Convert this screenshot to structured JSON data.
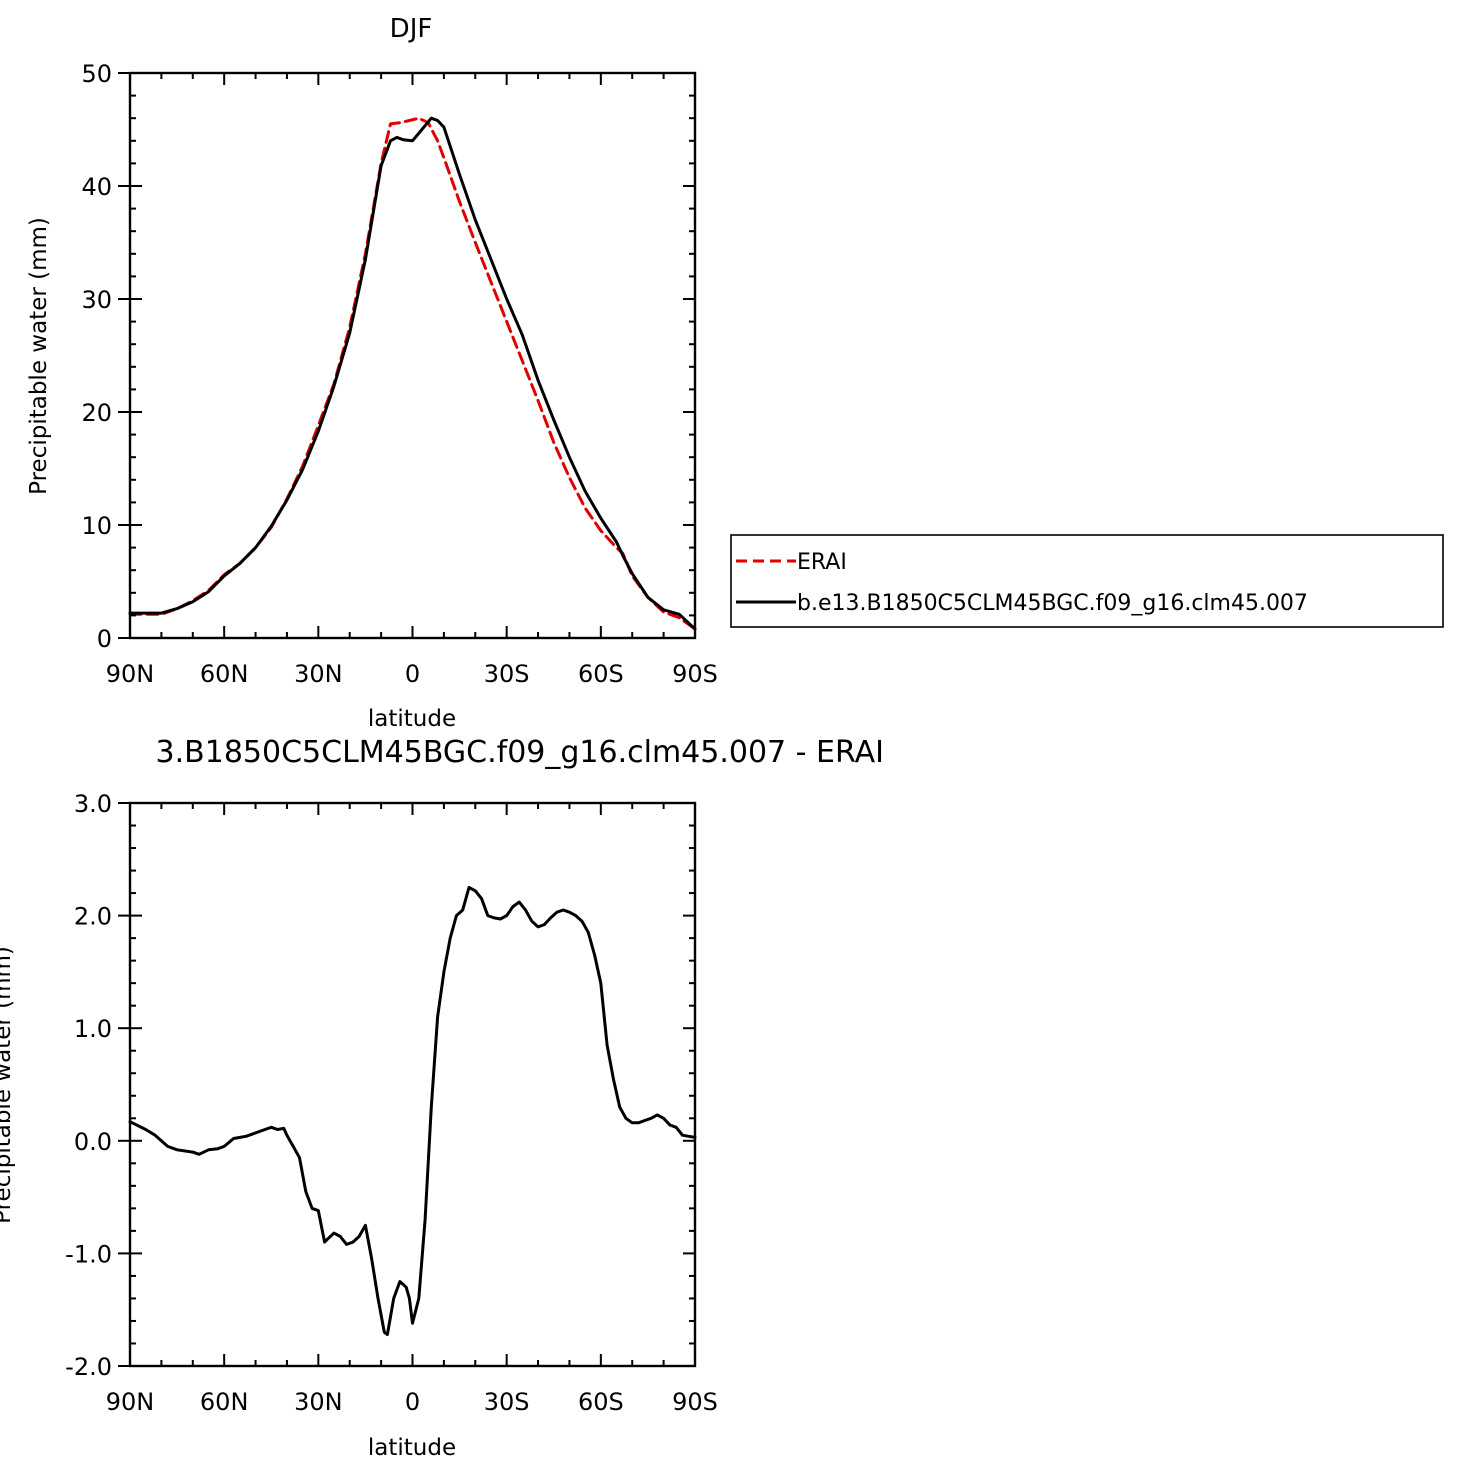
{
  "chart_data": [
    {
      "type": "line",
      "title": "DJF",
      "xlabel": "latitude",
      "ylabel": "Precipitable water (mm)",
      "xlim": [
        90,
        -90
      ],
      "ylim": [
        0,
        50
      ],
      "x_ticks": [
        90,
        60,
        30,
        0,
        -30,
        -60,
        -90
      ],
      "x_tick_labels": [
        "90N",
        "60N",
        "30N",
        "0",
        "30S",
        "60S",
        "90S"
      ],
      "y_ticks": [
        0,
        10,
        20,
        30,
        40,
        50
      ],
      "y_tick_labels": [
        "0",
        "10",
        "20",
        "30",
        "40",
        "50"
      ],
      "legend_position": "right",
      "series": [
        {
          "name": "ERAI",
          "color": "#e00000",
          "dash": "dashed",
          "x": [
            90,
            85,
            80,
            75,
            70,
            65,
            60,
            55,
            50,
            45,
            40,
            35,
            30,
            25,
            20,
            15,
            10,
            7,
            4,
            1,
            -2,
            -5,
            -8,
            -10,
            -15,
            -20,
            -25,
            -30,
            -35,
            -40,
            -45,
            -50,
            -55,
            -60,
            -65,
            -67,
            -70,
            -75,
            -80,
            -85,
            -90
          ],
          "y": [
            2.1,
            2.1,
            2.1,
            2.6,
            3.3,
            4.2,
            5.6,
            6.6,
            8.0,
            9.8,
            12.3,
            15.2,
            18.8,
            22.5,
            27.5,
            34.0,
            42.0,
            45.5,
            45.6,
            45.8,
            46.0,
            45.6,
            44.0,
            42.5,
            38.6,
            35.0,
            31.5,
            28.0,
            24.5,
            21.0,
            17.3,
            14.2,
            11.5,
            9.5,
            8.0,
            7.5,
            5.5,
            3.6,
            2.3,
            1.8,
            0.8
          ]
        },
        {
          "name": "b.e13.B1850C5CLM45BGC.f09_g16.clm45.007",
          "color": "#000000",
          "dash": "solid",
          "x": [
            90,
            85,
            80,
            75,
            70,
            65,
            60,
            55,
            50,
            45,
            40,
            35,
            30,
            25,
            20,
            15,
            10,
            7,
            5,
            3,
            0,
            -3,
            -6,
            -8,
            -10,
            -15,
            -20,
            -25,
            -30,
            -35,
            -40,
            -45,
            -50,
            -55,
            -60,
            -65,
            -67,
            -70,
            -75,
            -80,
            -85,
            -90
          ],
          "y": [
            2.2,
            2.2,
            2.2,
            2.6,
            3.2,
            4.1,
            5.5,
            6.6,
            8.0,
            9.9,
            12.2,
            14.9,
            18.3,
            22.3,
            27.0,
            33.5,
            41.8,
            44.0,
            44.3,
            44.1,
            44.0,
            45.0,
            46.0,
            45.8,
            45.2,
            41.0,
            37.0,
            33.5,
            30.0,
            26.8,
            22.8,
            19.3,
            16.0,
            13.0,
            10.6,
            8.5,
            7.3,
            5.7,
            3.6,
            2.5,
            2.1,
            0.8
          ]
        }
      ]
    },
    {
      "type": "line",
      "title": "3.B1850C5CLM45BGC.f09_g16.clm45.007 - ERAI",
      "xlabel": "latitude",
      "ylabel": "Precipitable water (mm)",
      "xlim": [
        90,
        -90
      ],
      "ylim": [
        -2.0,
        3.0
      ],
      "x_ticks": [
        90,
        60,
        30,
        0,
        -30,
        -60,
        -90
      ],
      "x_tick_labels": [
        "90N",
        "60N",
        "30N",
        "0",
        "30S",
        "60S",
        "90S"
      ],
      "y_ticks": [
        -2.0,
        -1.0,
        0.0,
        1.0,
        2.0,
        3.0
      ],
      "y_tick_labels": [
        "-2.0",
        "-1.0",
        "0.0",
        "1.0",
        "2.0",
        "3.0"
      ],
      "series": [
        {
          "color": "#000000",
          "dash": "solid",
          "x": [
            90,
            85,
            82,
            78,
            75,
            70,
            68,
            65,
            62,
            60,
            57,
            55,
            53,
            50,
            47,
            45,
            43,
            41,
            40,
            38,
            36,
            34,
            32,
            30,
            28,
            27,
            25,
            23,
            21,
            19,
            17,
            15,
            13,
            11,
            9,
            8,
            6,
            4,
            2,
            1,
            0,
            -2,
            -4,
            -6,
            -8,
            -10,
            -12,
            -14,
            -16,
            -18,
            -20,
            -22,
            -24,
            -26,
            -28,
            -30,
            -32,
            -34,
            -36,
            -38,
            -40,
            -42,
            -44,
            -46,
            -48,
            -50,
            -52,
            -54,
            -56,
            -58,
            -60,
            -62,
            -64,
            -66,
            -68,
            -70,
            -72,
            -74,
            -76,
            -78,
            -80,
            -82,
            -84,
            -86,
            -88,
            -90
          ],
          "y": [
            0.17,
            0.1,
            0.05,
            -0.05,
            -0.08,
            -0.1,
            -0.12,
            -0.08,
            -0.07,
            -0.05,
            0.02,
            0.03,
            0.04,
            0.07,
            0.1,
            0.12,
            0.1,
            0.11,
            0.05,
            -0.05,
            -0.15,
            -0.45,
            -0.6,
            -0.62,
            -0.9,
            -0.87,
            -0.82,
            -0.85,
            -0.92,
            -0.9,
            -0.85,
            -0.75,
            -1.05,
            -1.4,
            -1.7,
            -1.72,
            -1.4,
            -1.25,
            -1.3,
            -1.4,
            -1.62,
            -1.4,
            -0.7,
            0.3,
            1.1,
            1.5,
            1.8,
            2.0,
            2.05,
            2.25,
            2.22,
            2.15,
            2.0,
            1.98,
            1.97,
            2.0,
            2.08,
            2.12,
            2.05,
            1.95,
            1.9,
            1.92,
            1.98,
            2.03,
            2.05,
            2.03,
            2.0,
            1.95,
            1.85,
            1.65,
            1.4,
            0.85,
            0.55,
            0.3,
            0.2,
            0.16,
            0.16,
            0.18,
            0.2,
            0.23,
            0.2,
            0.14,
            0.12,
            0.05,
            0.04,
            0.03
          ]
        }
      ]
    }
  ]
}
